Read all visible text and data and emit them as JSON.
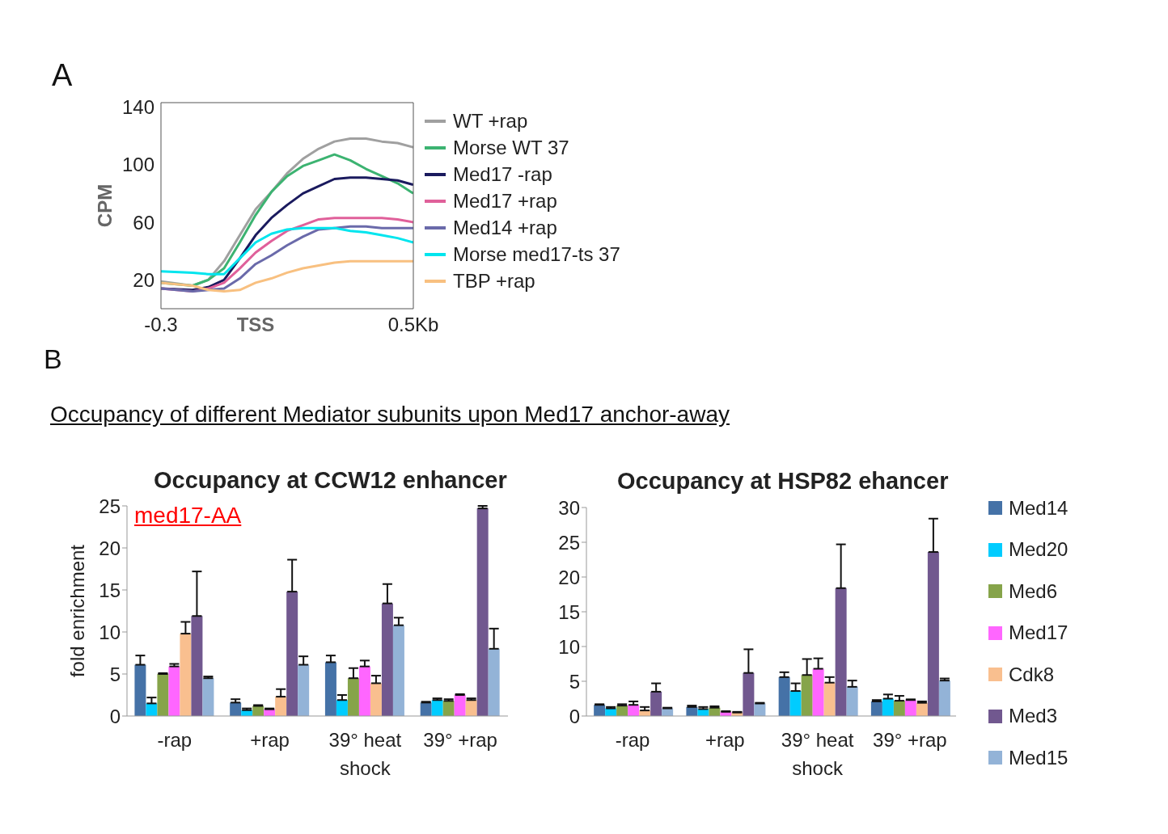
{
  "chart_data": [
    {
      "type": "line",
      "annotations": [
        "A"
      ],
      "ylabel": "CPM",
      "x": [
        -0.3,
        -0.2,
        -0.15,
        -0.1,
        -0.05,
        0,
        0.05,
        0.1,
        0.15,
        0.2,
        0.25,
        0.3,
        0.35,
        0.4,
        0.45,
        0.5
      ],
      "xlim": [
        -0.3,
        0.5
      ],
      "xticks": [
        -0.3,
        {
          "value": 0,
          "label": "TSS"
        },
        {
          "value": 0.5,
          "label": "0.5Kb"
        }
      ],
      "ylim": [
        0,
        143
      ],
      "yticks": [
        20,
        60,
        100,
        140
      ],
      "legend": "right",
      "series": [
        {
          "name": "WT +rap",
          "color": "#a0a0a0",
          "values": [
            19,
            16,
            20,
            33,
            51,
            69,
            81,
            94,
            104,
            111,
            116,
            118,
            118,
            116,
            115,
            112
          ]
        },
        {
          "name": "Morse WT 37",
          "color": "#3cb371",
          "values": [
            18,
            16,
            20,
            28,
            46,
            65,
            81,
            92,
            99,
            103,
            107,
            103,
            97,
            92,
            87,
            80
          ]
        },
        {
          "name": "Med17 -rap",
          "color": "#1a1a5e",
          "values": [
            14,
            13,
            15,
            20,
            35,
            51,
            63,
            72,
            80,
            85,
            90,
            91,
            91,
            90,
            89,
            86
          ]
        },
        {
          "name": "Med17 +rap",
          "color": "#e0609a",
          "values": [
            14,
            12,
            14,
            18,
            28,
            39,
            47,
            54,
            58,
            62,
            63,
            63,
            63,
            63,
            62,
            60
          ]
        },
        {
          "name": "Med14 +rap",
          "color": "#6a6aaa",
          "values": [
            14,
            12,
            13,
            14,
            21,
            31,
            37,
            44,
            50,
            55,
            56,
            57,
            57,
            56,
            56,
            56
          ]
        },
        {
          "name": "Morse med17-ts 37",
          "color": "#00e5ee",
          "values": [
            26,
            25,
            24,
            24,
            35,
            46,
            52,
            55,
            56,
            56,
            56,
            54,
            53,
            51,
            49,
            46
          ]
        },
        {
          "name": "TBP +rap",
          "color": "#f8c080",
          "values": [
            18,
            16,
            13,
            12,
            13,
            18,
            21,
            25,
            28,
            30,
            32,
            33,
            33,
            33,
            33,
            33
          ]
        }
      ]
    },
    {
      "type": "bar",
      "title": "Occupancy at CCW12 enhancer",
      "annotations": [
        "B",
        "Occupancy of different Mediator subunits upon Med17 anchor-away",
        "med17-AA"
      ],
      "ylabel": "fold enrichment",
      "categories": [
        "-rap",
        "+rap",
        "39° heat shock",
        "39° +rap"
      ],
      "ylim": [
        0,
        25
      ],
      "yticks": [
        0,
        5,
        10,
        15,
        20,
        25
      ],
      "series": [
        {
          "color": "#4572a7",
          "values": [
            6.1,
            1.6,
            6.4,
            1.6
          ],
          "errors": [
            [
              6.1,
              7.2
            ],
            [
              1.6,
              2.0
            ],
            [
              6.4,
              7.2
            ],
            [
              1.6,
              1.7
            ]
          ]
        },
        {
          "color": "#00ccff",
          "values": [
            1.5,
            0.7,
            1.9,
            1.9
          ],
          "errors": [
            [
              1.5,
              2.2
            ],
            [
              0.7,
              0.9
            ],
            [
              1.9,
              2.5
            ],
            [
              1.9,
              2.1
            ]
          ]
        },
        {
          "color": "#86a44a",
          "values": [
            5.0,
            1.2,
            4.5,
            1.8
          ],
          "errors": [
            [
              5.0,
              5.1
            ],
            [
              1.2,
              1.3
            ],
            [
              4.5,
              5.7
            ],
            [
              1.8,
              2.0
            ]
          ]
        },
        {
          "color": "#ff66ff",
          "values": [
            5.9,
            0.8,
            5.9,
            2.5
          ],
          "errors": [
            [
              5.9,
              6.2
            ],
            [
              0.8,
              0.9
            ],
            [
              5.9,
              6.6
            ],
            [
              2.5,
              2.6
            ]
          ]
        },
        {
          "color": "#f9bf8f",
          "values": [
            9.8,
            2.3,
            3.9,
            1.9
          ],
          "errors": [
            [
              9.8,
              11.2
            ],
            [
              2.3,
              3.2
            ],
            [
              3.9,
              4.8
            ],
            [
              1.9,
              2.1
            ]
          ]
        },
        {
          "color": "#71588f",
          "values": [
            11.9,
            14.8,
            13.4,
            24.7
          ],
          "errors": [
            [
              11.9,
              17.2
            ],
            [
              14.8,
              18.6
            ],
            [
              13.4,
              15.7
            ],
            [
              24.7,
              25
            ]
          ]
        },
        {
          "color": "#93b3d7",
          "values": [
            4.5,
            6.1,
            10.8,
            8.0
          ],
          "errors": [
            [
              4.5,
              4.7
            ],
            [
              6.1,
              7.1
            ],
            [
              10.8,
              11.7
            ],
            [
              8.0,
              10.4
            ]
          ]
        }
      ]
    },
    {
      "type": "bar",
      "title": "Occupancy at HSP82 ehancer",
      "categories": [
        "-rap",
        "+rap",
        "39° heat shock",
        "39° +rap"
      ],
      "ylim": [
        0,
        30
      ],
      "yticks": [
        0,
        5,
        10,
        15,
        20,
        25,
        30
      ],
      "legend": "right",
      "series": [
        {
          "name": "Med14",
          "color": "#4572a7",
          "values": [
            1.6,
            1.3,
            5.6,
            2.1
          ],
          "errors": [
            [
              1.6,
              1.7
            ],
            [
              1.3,
              1.5
            ],
            [
              5.6,
              6.3
            ],
            [
              2.1,
              2.3
            ]
          ]
        },
        {
          "name": "Med20",
          "color": "#00ccff",
          "values": [
            1.1,
            1.0,
            3.6,
            2.5
          ],
          "errors": [
            [
              1.1,
              1.3
            ],
            [
              1.0,
              1.3
            ],
            [
              3.6,
              4.7
            ],
            [
              2.5,
              3.1
            ]
          ]
        },
        {
          "name": "Med6",
          "color": "#86a44a",
          "values": [
            1.5,
            1.2,
            5.9,
            2.2
          ],
          "errors": [
            [
              1.5,
              1.7
            ],
            [
              1.2,
              1.4
            ],
            [
              5.9,
              8.2
            ],
            [
              2.2,
              2.9
            ]
          ]
        },
        {
          "name": "Med17",
          "color": "#ff66ff",
          "values": [
            1.6,
            0.6,
            6.8,
            2.3
          ],
          "errors": [
            [
              1.6,
              2.1
            ],
            [
              0.6,
              0.7
            ],
            [
              6.8,
              8.3
            ],
            [
              2.3,
              2.4
            ]
          ]
        },
        {
          "name": "Cdk8",
          "color": "#f9bf8f",
          "values": [
            0.8,
            0.5,
            4.8,
            1.9
          ],
          "errors": [
            [
              0.8,
              1.3
            ],
            [
              0.5,
              0.6
            ],
            [
              4.8,
              5.6
            ],
            [
              1.9,
              2.1
            ]
          ]
        },
        {
          "name": "Med3",
          "color": "#71588f",
          "values": [
            3.5,
            6.2,
            18.4,
            23.6
          ],
          "errors": [
            [
              3.5,
              4.7
            ],
            [
              6.2,
              9.6
            ],
            [
              18.4,
              24.7
            ],
            [
              23.6,
              28.4
            ]
          ]
        },
        {
          "name": "Med15",
          "color": "#93b3d7",
          "values": [
            1.1,
            1.8,
            4.2,
            5.1
          ],
          "errors": [
            [
              1.1,
              1.2
            ],
            [
              1.8,
              1.9
            ],
            [
              4.2,
              5.1
            ],
            [
              5.1,
              5.4
            ]
          ]
        }
      ]
    }
  ]
}
